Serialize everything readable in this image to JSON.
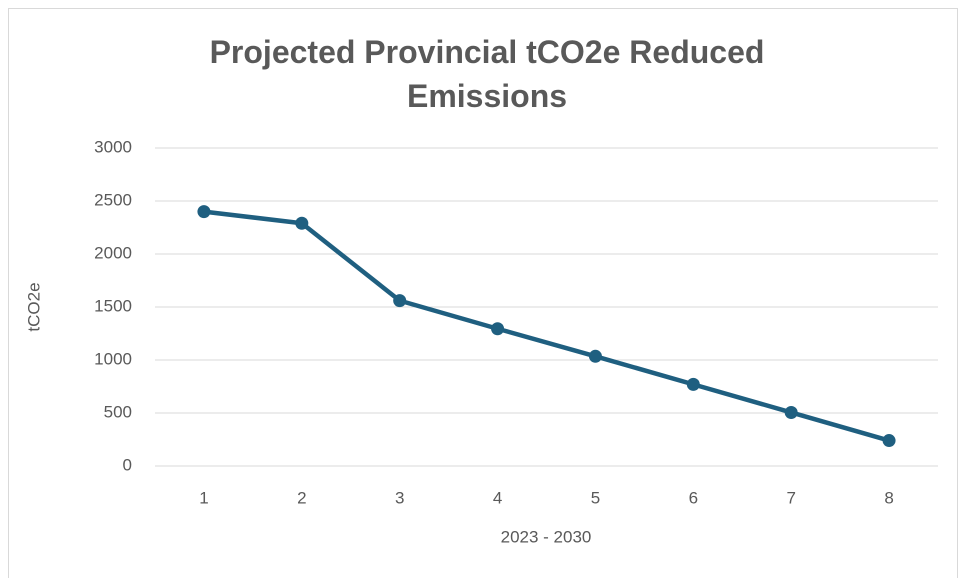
{
  "chart_data": {
    "type": "line",
    "title": "Projected Provincial tCO2e Reduced Emissions",
    "x_label": "2023 - 2030",
    "y_label": "tCO2e",
    "categories": [
      "1",
      "2",
      "3",
      "4",
      "5",
      "6",
      "7",
      "8"
    ],
    "series": [
      {
        "name": "tCO2e",
        "color": "#1f5f80",
        "values": [
          2400,
          2290,
          1560,
          1295,
          1035,
          770,
          505,
          240
        ]
      }
    ],
    "ylim": [
      0,
      3000
    ],
    "yticks": [
      0,
      500,
      1000,
      1500,
      2000,
      2500,
      3000
    ],
    "grid": true
  }
}
